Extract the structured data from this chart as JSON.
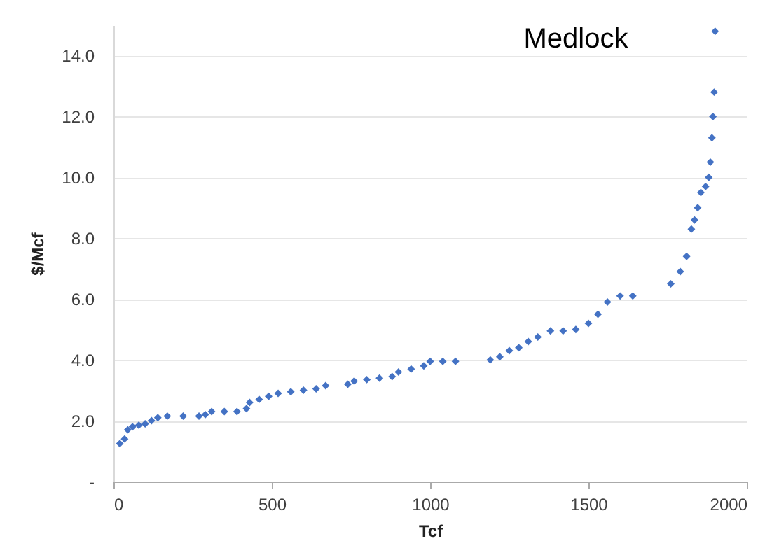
{
  "chart_data": {
    "type": "scatter",
    "xlabel": "Tcf",
    "ylabel": "$/Mcf",
    "annotations": [
      "Medlock"
    ],
    "marker": "diamond",
    "grid": "y",
    "xlim": [
      0,
      2000
    ],
    "xticks": [
      0,
      500,
      1000,
      1500,
      2000
    ],
    "ylim": [
      0,
      15
    ],
    "yticks": [
      {
        "value": 0,
        "label": "-"
      },
      {
        "value": 2,
        "label": "2.0"
      },
      {
        "value": 4,
        "label": "4.0"
      },
      {
        "value": 6,
        "label": "6.0"
      },
      {
        "value": 8,
        "label": "8.0"
      },
      {
        "value": 10,
        "label": "10.0"
      },
      {
        "value": 12,
        "label": "12.0"
      },
      {
        "value": 14,
        "label": "14.0"
      }
    ],
    "series": [
      {
        "color": "#4472c4",
        "x": [
          20,
          35,
          45,
          60,
          80,
          100,
          120,
          140,
          170,
          220,
          270,
          290,
          310,
          350,
          390,
          420,
          430,
          460,
          490,
          520,
          560,
          600,
          640,
          670,
          740,
          760,
          800,
          840,
          880,
          900,
          940,
          980,
          1000,
          1040,
          1080,
          1190,
          1220,
          1250,
          1280,
          1310,
          1340,
          1380,
          1420,
          1460,
          1500,
          1530,
          1560,
          1600,
          1640,
          1760,
          1790,
          1810,
          1825,
          1835,
          1845,
          1855,
          1870,
          1880,
          1885,
          1890,
          1893,
          1897,
          1900
        ],
        "values": [
          1.25,
          1.4,
          1.7,
          1.8,
          1.85,
          1.9,
          2.0,
          2.1,
          2.15,
          2.15,
          2.15,
          2.2,
          2.3,
          2.3,
          2.3,
          2.4,
          2.6,
          2.7,
          2.8,
          2.9,
          2.95,
          3.0,
          3.05,
          3.15,
          3.2,
          3.3,
          3.35,
          3.4,
          3.45,
          3.6,
          3.7,
          3.8,
          3.95,
          3.95,
          3.95,
          4.0,
          4.1,
          4.3,
          4.4,
          4.6,
          4.75,
          4.95,
          4.95,
          5.0,
          5.2,
          5.5,
          5.9,
          6.1,
          6.1,
          6.5,
          6.9,
          7.4,
          8.3,
          8.6,
          9.0,
          9.5,
          9.7,
          10.0,
          10.5,
          11.3,
          12.0,
          12.8,
          14.8
        ]
      }
    ]
  }
}
